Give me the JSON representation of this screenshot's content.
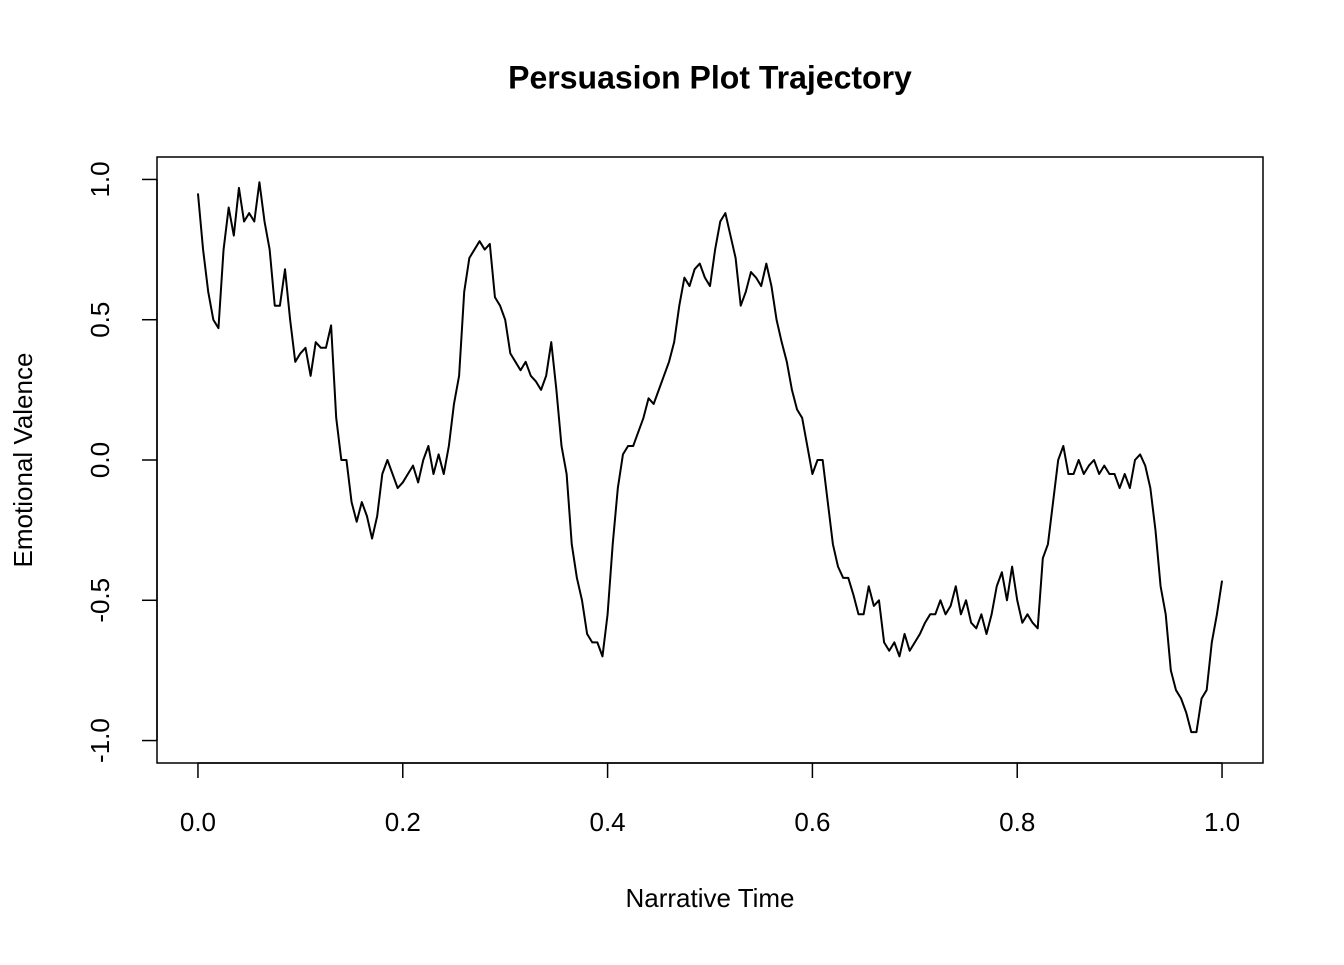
{
  "chart_data": {
    "type": "line",
    "title": "Persuasion Plot Trajectory",
    "x_label": "Narrative Time",
    "y_label": "Emotional Valence",
    "xlim": [
      -0.04,
      1.04
    ],
    "ylim": [
      -1.08,
      1.08
    ],
    "xticks": [
      {
        "value": 0,
        "label": "0.0"
      },
      0.2,
      0.4,
      0.6,
      0.8,
      {
        "value": 1,
        "label": "1.0"
      }
    ],
    "yticks": [
      {
        "value": -1,
        "label": "-1.0"
      },
      -0.5,
      {
        "value": 0,
        "label": "0.0"
      },
      0.5,
      {
        "value": 1,
        "label": "1.0"
      }
    ],
    "grid": false,
    "x": [
      0,
      0.005,
      0.01,
      0.015,
      0.02,
      0.025,
      0.03,
      0.035,
      0.04,
      0.045,
      0.05,
      0.055,
      0.06,
      0.065,
      0.07,
      0.075,
      0.08,
      0.085,
      0.09,
      0.095,
      0.1,
      0.105,
      0.11,
      0.115,
      0.12,
      0.125,
      0.13,
      0.135,
      0.14,
      0.145,
      0.15,
      0.155,
      0.16,
      0.165,
      0.17,
      0.175,
      0.18,
      0.185,
      0.19,
      0.195,
      0.2,
      0.205,
      0.21,
      0.215,
      0.22,
      0.225,
      0.23,
      0.235,
      0.24,
      0.245,
      0.25,
      0.255,
      0.26,
      0.265,
      0.27,
      0.275,
      0.28,
      0.285,
      0.29,
      0.295,
      0.3,
      0.305,
      0.31,
      0.315,
      0.32,
      0.325,
      0.33,
      0.335,
      0.34,
      0.345,
      0.35,
      0.355,
      0.36,
      0.365,
      0.37,
      0.375,
      0.38,
      0.385,
      0.39,
      0.395,
      0.4,
      0.405,
      0.41,
      0.415,
      0.42,
      0.425,
      0.43,
      0.435,
      0.44,
      0.445,
      0.45,
      0.455,
      0.46,
      0.465,
      0.47,
      0.475,
      0.48,
      0.485,
      0.49,
      0.495,
      0.5,
      0.505,
      0.51,
      0.515,
      0.52,
      0.525,
      0.53,
      0.535,
      0.54,
      0.545,
      0.55,
      0.555,
      0.56,
      0.565,
      0.57,
      0.575,
      0.58,
      0.585,
      0.59,
      0.595,
      0.6,
      0.605,
      0.61,
      0.615,
      0.62,
      0.625,
      0.63,
      0.635,
      0.64,
      0.645,
      0.65,
      0.655,
      0.66,
      0.665,
      0.67,
      0.675,
      0.68,
      0.685,
      0.69,
      0.695,
      0.7,
      0.705,
      0.71,
      0.715,
      0.72,
      0.725,
      0.73,
      0.735,
      0.74,
      0.745,
      0.75,
      0.755,
      0.76,
      0.765,
      0.77,
      0.775,
      0.78,
      0.785,
      0.79,
      0.795,
      0.8,
      0.805,
      0.81,
      0.815,
      0.82,
      0.825,
      0.83,
      0.835,
      0.84,
      0.845,
      0.85,
      0.855,
      0.86,
      0.865,
      0.87,
      0.875,
      0.88,
      0.885,
      0.89,
      0.895,
      0.9,
      0.905,
      0.91,
      0.915,
      0.92,
      0.925,
      0.93,
      0.935,
      0.94,
      0.945,
      0.95,
      0.955,
      0.96,
      0.965,
      0.97,
      0.975,
      0.98,
      0.985,
      0.99,
      0.995,
      1
    ],
    "series": [
      {
        "color": "#000000",
        "values": [
          0.95,
          0.75,
          0.6,
          0.5,
          0.47,
          0.75,
          0.9,
          0.8,
          0.97,
          0.85,
          0.88,
          0.85,
          0.99,
          0.85,
          0.75,
          0.55,
          0.55,
          0.68,
          0.5,
          0.35,
          0.38,
          0.4,
          0.3,
          0.42,
          0.4,
          0.4,
          0.48,
          0.15,
          0.0,
          0.0,
          -0.15,
          -0.22,
          -0.15,
          -0.2,
          -0.28,
          -0.2,
          -0.05,
          0.0,
          -0.05,
          -0.1,
          -0.08,
          -0.05,
          -0.02,
          -0.08,
          0.0,
          0.05,
          -0.05,
          0.02,
          -0.05,
          0.05,
          0.2,
          0.3,
          0.6,
          0.72,
          0.75,
          0.78,
          0.75,
          0.77,
          0.58,
          0.55,
          0.5,
          0.38,
          0.35,
          0.32,
          0.35,
          0.3,
          0.28,
          0.25,
          0.3,
          0.42,
          0.25,
          0.05,
          -0.05,
          -0.3,
          -0.42,
          -0.5,
          -0.62,
          -0.65,
          -0.65,
          -0.7,
          -0.55,
          -0.3,
          -0.1,
          0.02,
          0.05,
          0.05,
          0.1,
          0.15,
          0.22,
          0.2,
          0.25,
          0.3,
          0.35,
          0.42,
          0.55,
          0.65,
          0.62,
          0.68,
          0.7,
          0.65,
          0.62,
          0.75,
          0.85,
          0.88,
          0.8,
          0.72,
          0.55,
          0.6,
          0.67,
          0.65,
          0.62,
          0.7,
          0.62,
          0.5,
          0.42,
          0.35,
          0.25,
          0.18,
          0.15,
          0.05,
          -0.05,
          0.0,
          0.0,
          -0.15,
          -0.3,
          -0.38,
          -0.42,
          -0.42,
          -0.48,
          -0.55,
          -0.55,
          -0.45,
          -0.52,
          -0.5,
          -0.65,
          -0.68,
          -0.65,
          -0.7,
          -0.62,
          -0.68,
          -0.65,
          -0.62,
          -0.58,
          -0.55,
          -0.55,
          -0.5,
          -0.55,
          -0.52,
          -0.45,
          -0.55,
          -0.5,
          -0.58,
          -0.6,
          -0.55,
          -0.62,
          -0.55,
          -0.45,
          -0.4,
          -0.5,
          -0.38,
          -0.5,
          -0.58,
          -0.55,
          -0.58,
          -0.6,
          -0.35,
          -0.3,
          -0.15,
          0.0,
          0.05,
          -0.05,
          -0.05,
          0.0,
          -0.05,
          -0.02,
          0.0,
          -0.05,
          -0.02,
          -0.05,
          -0.05,
          -0.1,
          -0.05,
          -0.1,
          0.0,
          0.02,
          -0.02,
          -0.1,
          -0.25,
          -0.45,
          -0.55,
          -0.75,
          -0.82,
          -0.85,
          -0.9,
          -0.97,
          -0.97,
          -0.85,
          -0.82,
          -0.65,
          -0.55,
          -0.43
        ]
      }
    ]
  }
}
